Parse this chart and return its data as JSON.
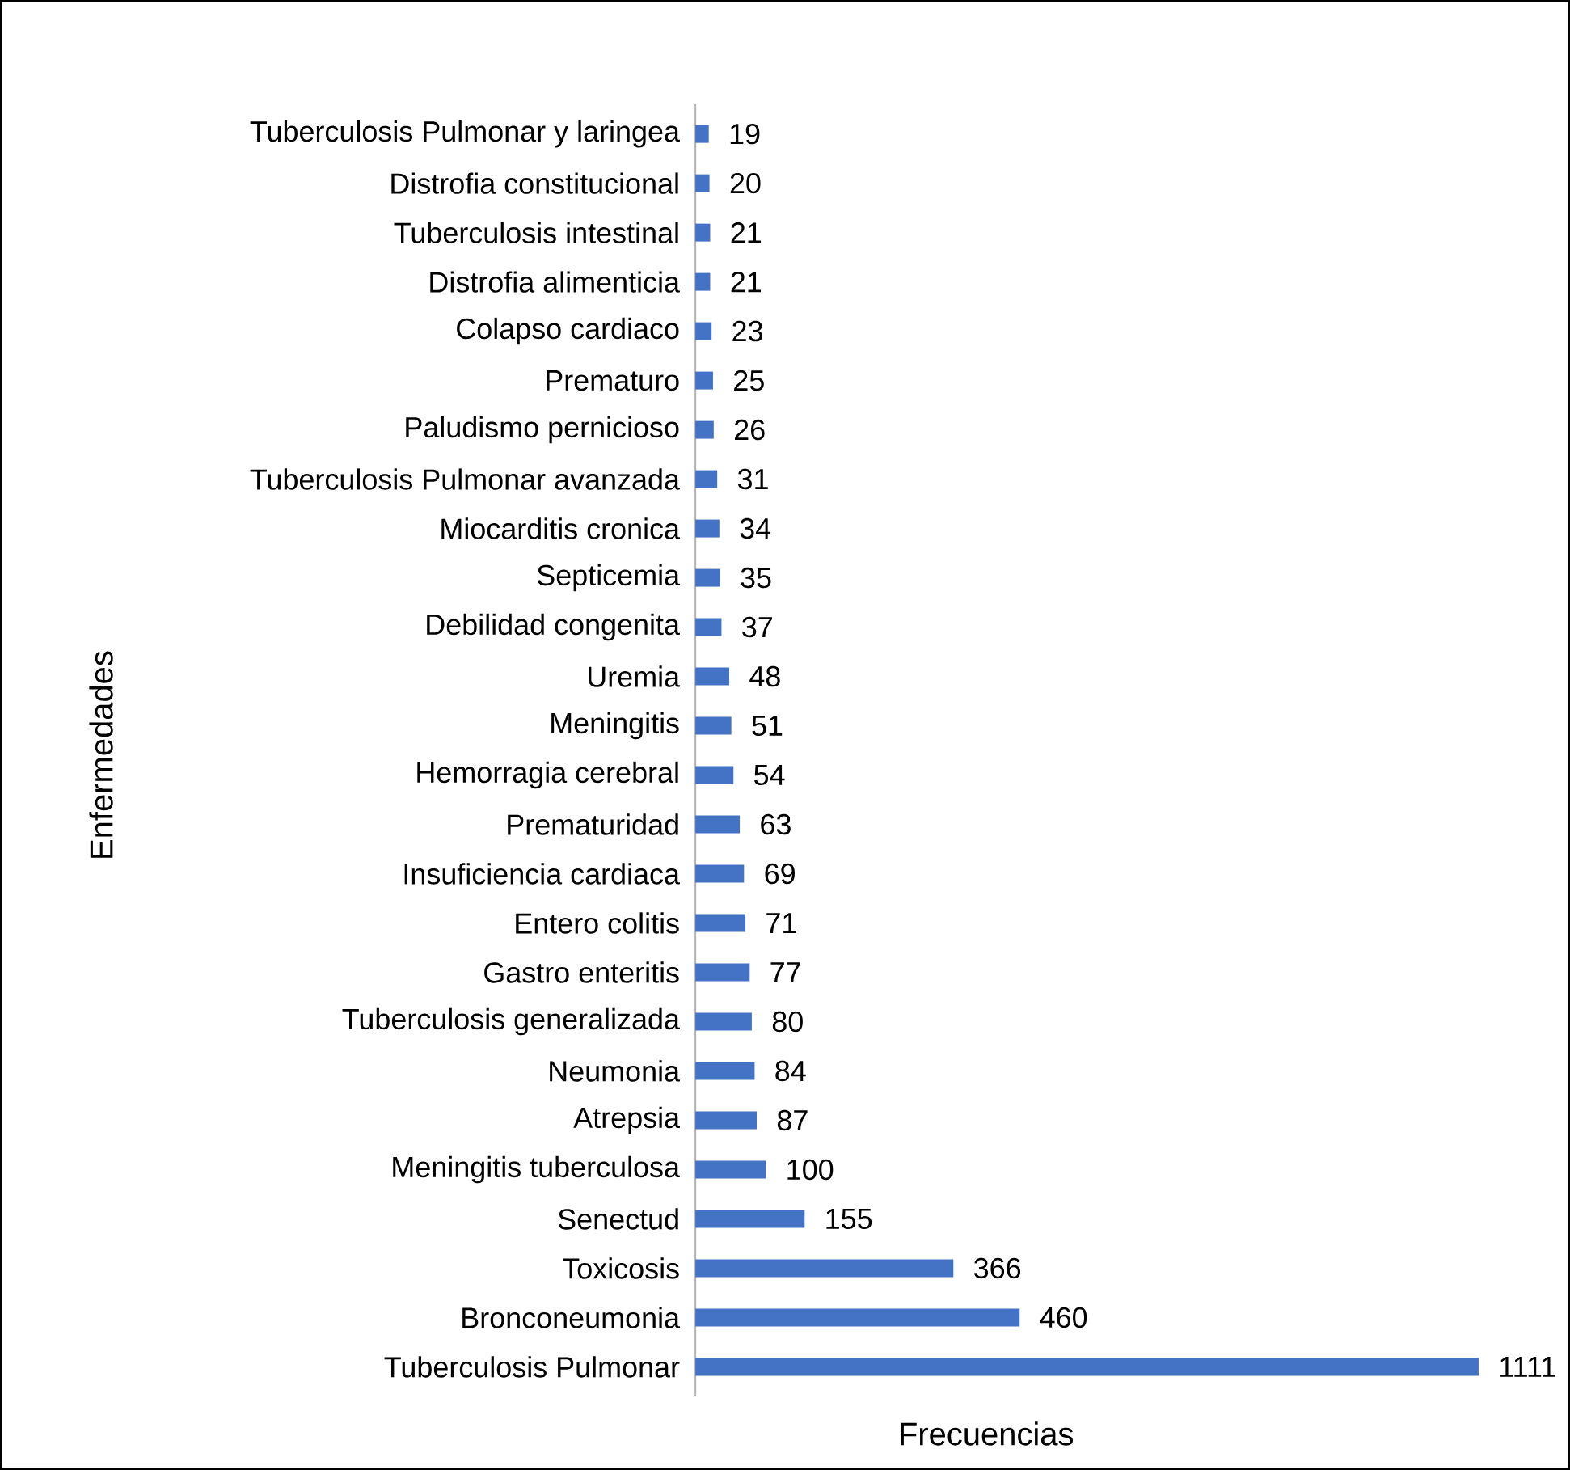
{
  "chart_data": {
    "type": "bar",
    "orientation": "horizontal",
    "xlabel": "Frecuencias",
    "ylabel": "Enfermedades",
    "categories": [
      "Tuberculosis Pulmonar y laringea",
      "Distrofia constitucional",
      "Tuberculosis intestinal",
      "Distrofia alimenticia",
      "Colapso cardiaco",
      "Prematuro",
      "Paludismo pernicioso",
      "Tuberculosis Pulmonar avanzada",
      "Miocarditis cronica",
      "Septicemia",
      "Debilidad congenita",
      "Uremia",
      "Meningitis",
      "Hemorragia cerebral",
      "Prematuridad",
      "Insuficiencia cardiaca",
      "Entero colitis",
      "Gastro enteritis",
      "Tuberculosis generalizada",
      "Neumonia",
      "Atrepsia",
      "Meningitis tuberculosa",
      "Senectud",
      "Toxicosis",
      "Bronconeumonia",
      "Tuberculosis Pulmonar"
    ],
    "values": [
      19,
      20,
      21,
      21,
      23,
      25,
      26,
      31,
      34,
      35,
      37,
      48,
      51,
      54,
      63,
      69,
      71,
      77,
      80,
      84,
      87,
      100,
      155,
      366,
      460,
      1111
    ],
    "color": "#4472c4",
    "data_labels": true
  }
}
